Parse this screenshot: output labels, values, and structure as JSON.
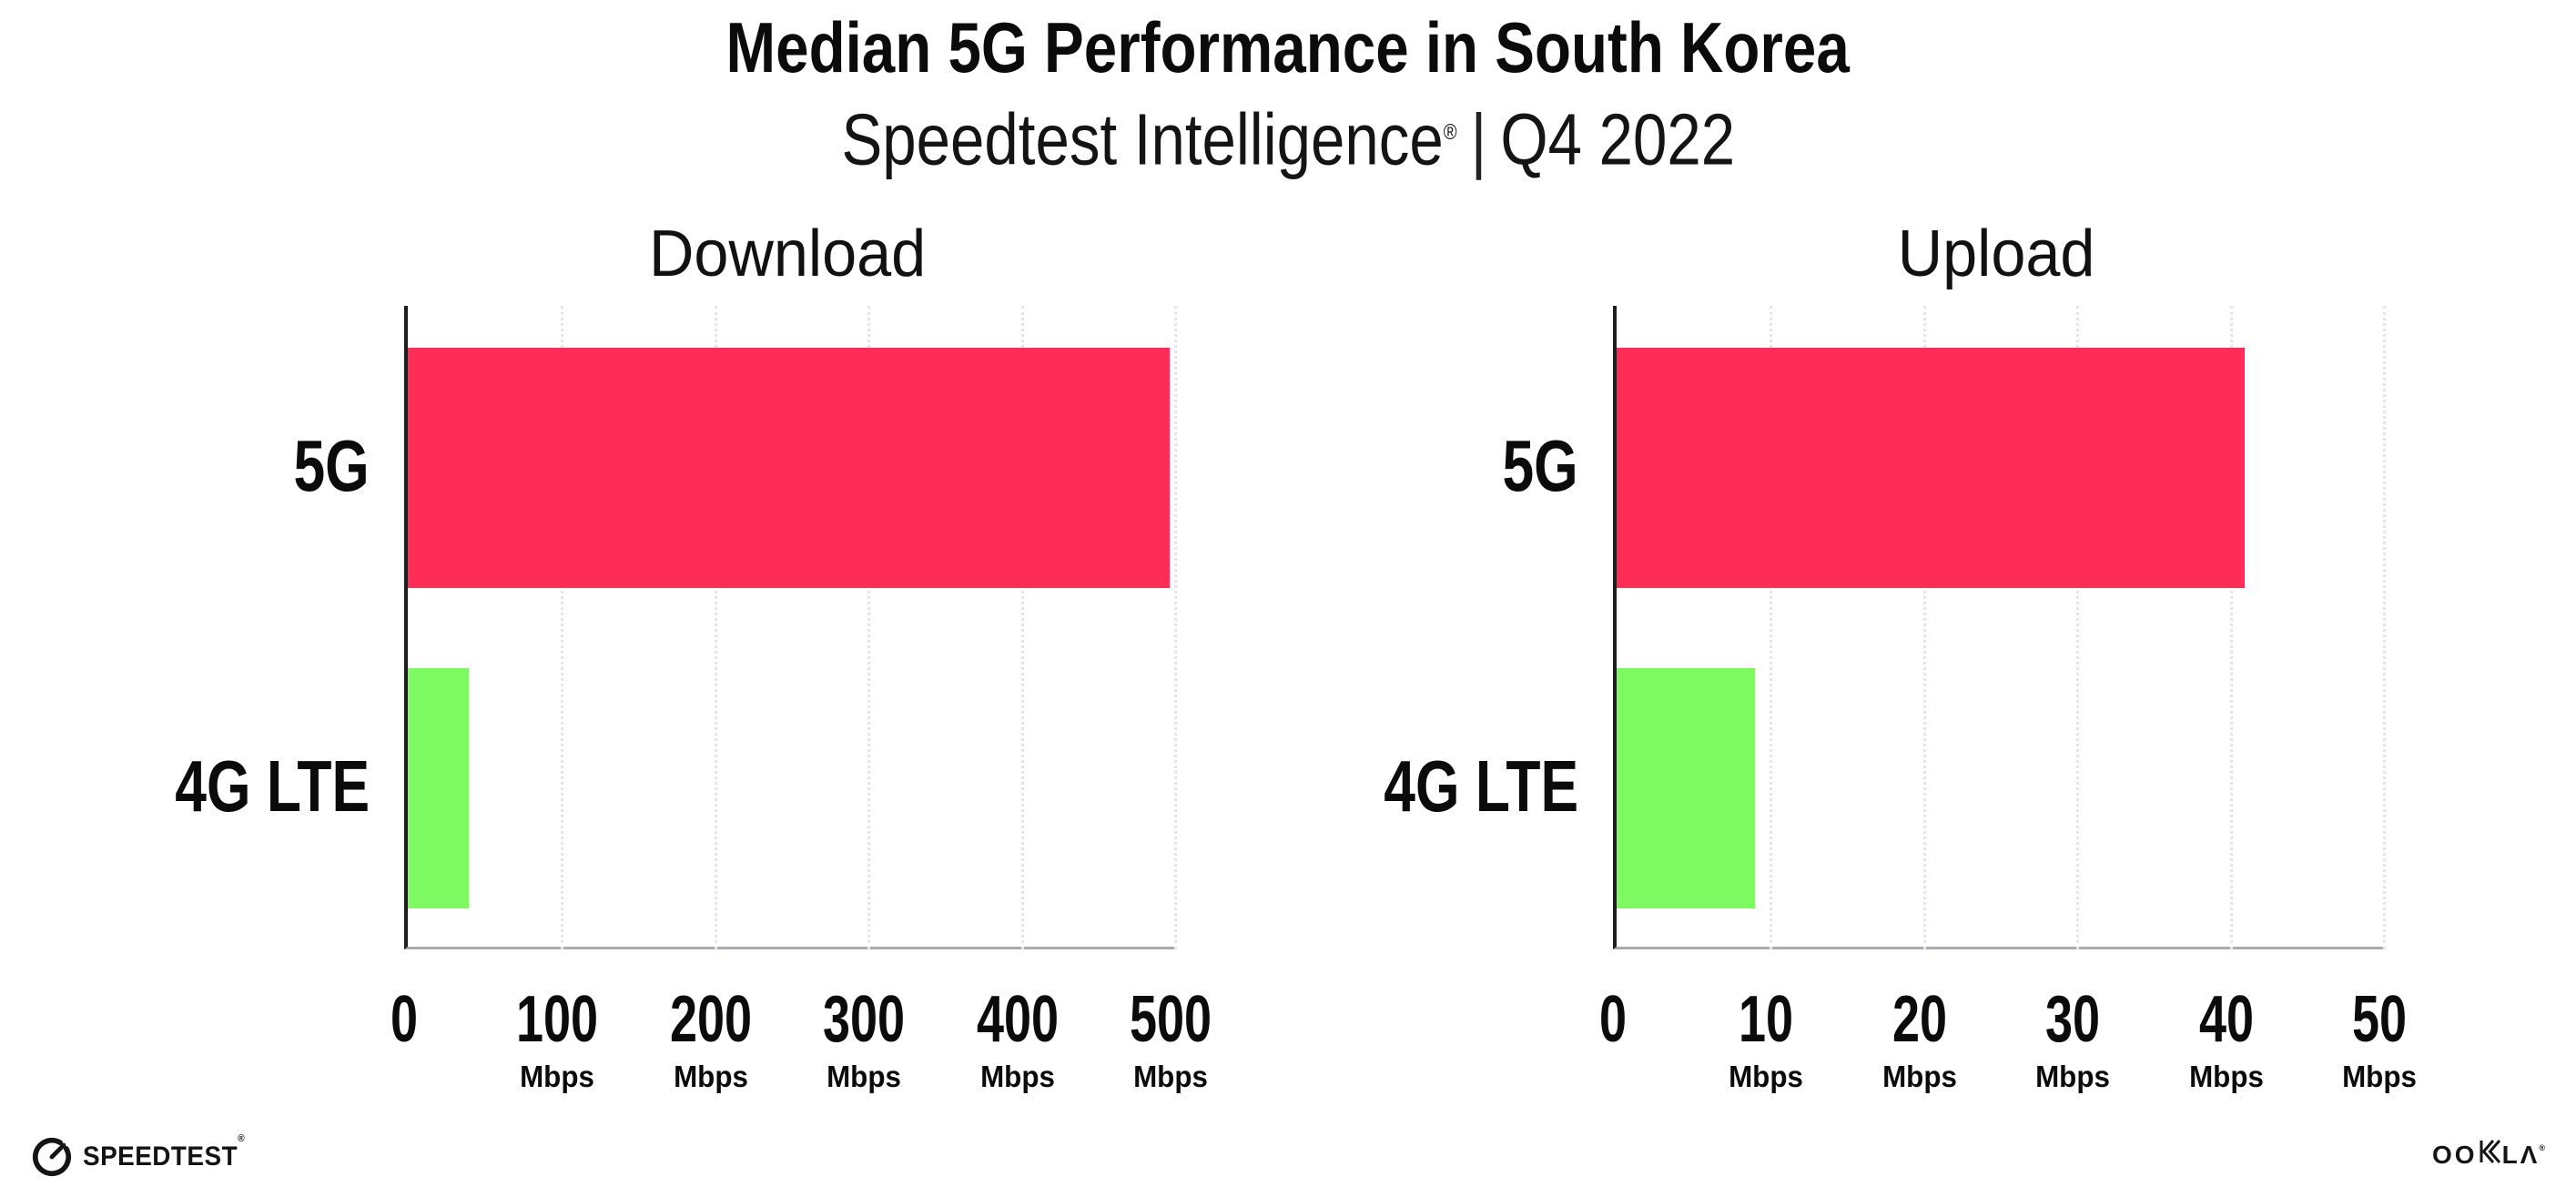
{
  "header": {
    "title": "Median 5G Performance in South Korea",
    "subtitle_brand": "Speedtest Intelligence",
    "subtitle_reg": "®",
    "subtitle_separator": "|",
    "subtitle_period": "Q4 2022"
  },
  "colors": {
    "background": "#ffffff",
    "bar_5g": "#FE2D58",
    "bar_4g_lte": "#7DFA62",
    "gridline": "#E3E6F0",
    "y_axis": "#1E1E1E",
    "x_axis": "#ACACAC",
    "text": "#0B0B0B"
  },
  "chart_data": [
    {
      "type": "bar",
      "orientation": "horizontal",
      "title": "Download",
      "categories": [
        "5G",
        "4G LTE"
      ],
      "values": [
        497,
        40
      ],
      "value_unit": "Mbps",
      "xlim": [
        0,
        500
      ],
      "xticks": [
        0,
        100,
        200,
        300,
        400,
        500
      ],
      "xtick_unit": "Mbps",
      "grid": "dotted-vertical",
      "legend": "none",
      "bar_colors": [
        "#FE2D58",
        "#7DFA62"
      ]
    },
    {
      "type": "bar",
      "orientation": "horizontal",
      "title": "Upload",
      "categories": [
        "5G",
        "4G LTE"
      ],
      "values": [
        41,
        9
      ],
      "value_unit": "Mbps",
      "xlim": [
        0,
        50
      ],
      "xticks": [
        0,
        10,
        20,
        30,
        40,
        50
      ],
      "xtick_unit": "Mbps",
      "grid": "dotted-vertical",
      "legend": "none",
      "bar_colors": [
        "#FE2D58",
        "#7DFA62"
      ]
    }
  ],
  "footer": {
    "speedtest_text": "SPEEDTEST",
    "speedtest_reg": "®",
    "ookla_oo": "OO",
    "ookla_la": "LΛ",
    "ookla_reg": "®"
  }
}
